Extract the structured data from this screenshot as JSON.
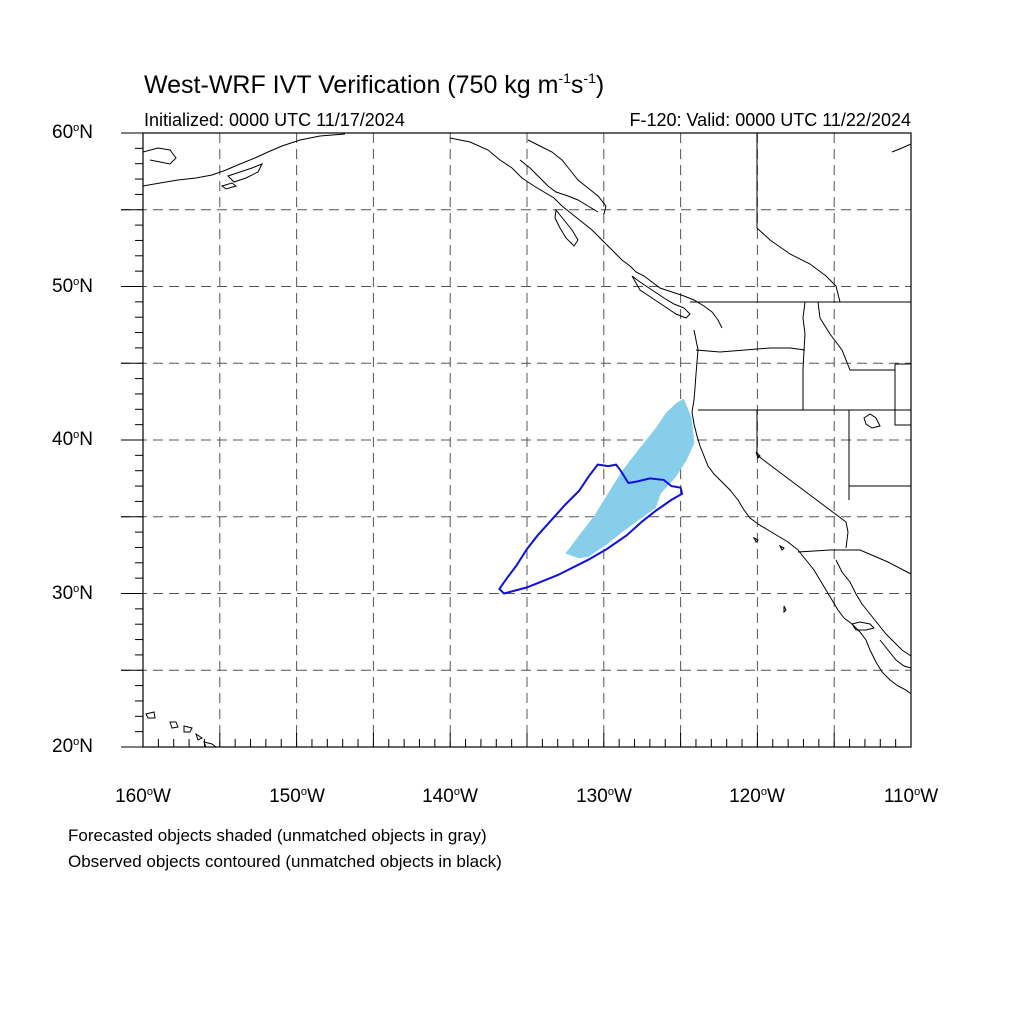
{
  "title": {
    "text": "West-WRF IVT Verification (750 kg m",
    "sup1": "-1",
    "mid": "s",
    "sup2": "-1",
    "end": ")"
  },
  "subtitle_left": "Initialized: 0000 UTC 11/17/2024",
  "subtitle_right": "F-120: Valid: 0000 UTC 11/22/2024",
  "degree_symbol": "o",
  "lat_labels": [
    {
      "num": "60",
      "hemi": "N"
    },
    {
      "num": "50",
      "hemi": "N"
    },
    {
      "num": "40",
      "hemi": "N"
    },
    {
      "num": "30",
      "hemi": "N"
    },
    {
      "num": "20",
      "hemi": "N"
    }
  ],
  "lon_labels": [
    {
      "num": "160",
      "hemi": "W"
    },
    {
      "num": "150",
      "hemi": "W"
    },
    {
      "num": "140",
      "hemi": "W"
    },
    {
      "num": "130",
      "hemi": "W"
    },
    {
      "num": "120",
      "hemi": "W"
    },
    {
      "num": "110",
      "hemi": "W"
    }
  ],
  "notes": [
    "Forecasted objects shaded (unmatched objects in gray)",
    "Observed objects contoured (unmatched objects in black)"
  ],
  "colors": {
    "forecast_fill": "#87ceeb",
    "observed_contour": "#1010e0",
    "coastline": "#000000",
    "grid": "#555555"
  },
  "map_extent": {
    "lon_min": -160,
    "lon_max": -110,
    "lat_min": 20,
    "lat_max": 60
  },
  "forecast_object": [
    [
      -124.8,
      42.7
    ],
    [
      -124.3,
      41.5
    ],
    [
      -124.1,
      39.8
    ],
    [
      -124.6,
      38.7
    ],
    [
      -125.3,
      37.6
    ],
    [
      -126.3,
      36.5
    ],
    [
      -126.6,
      35.6
    ],
    [
      -127.3,
      35.1
    ],
    [
      -128.8,
      34.0
    ],
    [
      -129.8,
      33.2
    ],
    [
      -131.0,
      32.4
    ],
    [
      -131.6,
      32.3
    ],
    [
      -132.5,
      32.6
    ],
    [
      -131.6,
      33.8
    ],
    [
      -130.6,
      35.1
    ],
    [
      -129.8,
      36.4
    ],
    [
      -128.8,
      38.0
    ],
    [
      -127.8,
      39.3
    ],
    [
      -126.6,
      40.8
    ],
    [
      -126.0,
      41.7
    ],
    [
      -125.3,
      42.4
    ]
  ],
  "observed_object": [
    [
      -136.5,
      30.0
    ],
    [
      -135.0,
      30.4
    ],
    [
      -133.0,
      31.2
    ],
    [
      -131.0,
      32.2
    ],
    [
      -129.8,
      32.9
    ],
    [
      -128.5,
      33.8
    ],
    [
      -127.5,
      34.7
    ],
    [
      -126.6,
      35.4
    ],
    [
      -125.6,
      36.1
    ],
    [
      -124.9,
      36.5
    ],
    [
      -125.0,
      36.9
    ],
    [
      -125.6,
      37.0
    ],
    [
      -126.1,
      37.4
    ],
    [
      -127.0,
      37.5
    ],
    [
      -127.8,
      37.3
    ],
    [
      -128.4,
      37.2
    ],
    [
      -128.9,
      38.0
    ],
    [
      -129.2,
      38.4
    ],
    [
      -129.7,
      38.3
    ],
    [
      -130.4,
      38.4
    ],
    [
      -131.0,
      37.6
    ],
    [
      -131.6,
      36.7
    ],
    [
      -132.5,
      35.8
    ],
    [
      -133.4,
      34.8
    ],
    [
      -134.3,
      33.8
    ],
    [
      -135.0,
      32.9
    ],
    [
      -135.7,
      31.8
    ],
    [
      -136.3,
      31.0
    ],
    [
      -136.8,
      30.3
    ]
  ]
}
